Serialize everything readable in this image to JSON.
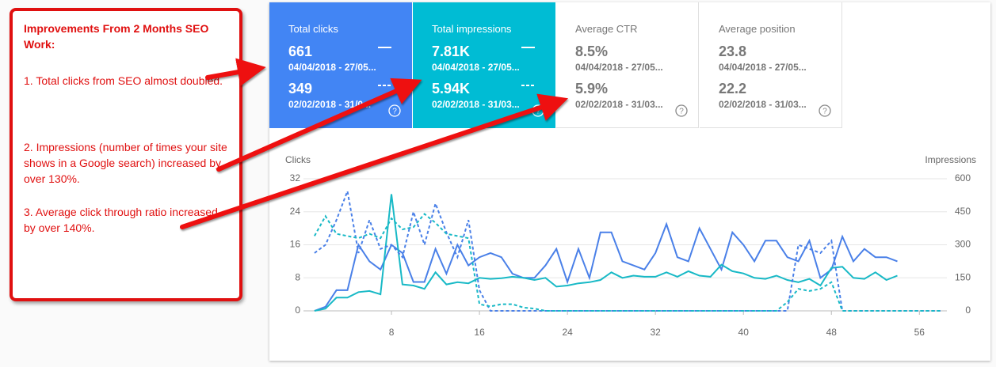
{
  "annotation": {
    "title": "Improvements From 2 Months SEO Work:",
    "items": [
      "1.  Total clicks from SEO almost doubled.",
      "2.  Impressions (number of times your site shows in a Google search) increased by over 130%.",
      "3.  Average click through ratio increased by over 140%."
    ]
  },
  "cards": [
    {
      "label": "Total clicks",
      "current": {
        "value": "661",
        "range": "04/04/2018 - 27/05..."
      },
      "previous": {
        "value": "349",
        "range": "02/02/2018 - 31/0..."
      },
      "color": "#4285f4"
    },
    {
      "label": "Total impressions",
      "current": {
        "value": "7.81K",
        "range": "04/04/2018 - 27/05..."
      },
      "previous": {
        "value": "5.94K",
        "range": "02/02/2018 - 31/03..."
      },
      "color": "#00bcd4"
    },
    {
      "label": "Average CTR",
      "current": {
        "value": "8.5%",
        "range": "04/04/2018 - 27/05..."
      },
      "previous": {
        "value": "5.9%",
        "range": "02/02/2018 - 31/03..."
      },
      "color": "#ffffff"
    },
    {
      "label": "Average position",
      "current": {
        "value": "23.8",
        "range": "04/04/2018 - 27/05..."
      },
      "previous": {
        "value": "22.2",
        "range": "02/02/2018 - 31/03..."
      },
      "color": "#ffffff"
    }
  ],
  "chart_data": {
    "type": "line",
    "y_label": "Clicks",
    "y2_label": "Impressions",
    "x": [
      1,
      2,
      3,
      4,
      5,
      6,
      7,
      8,
      9,
      10,
      11,
      12,
      13,
      14,
      15,
      16,
      17,
      18,
      19,
      20,
      21,
      22,
      23,
      24,
      25,
      26,
      27,
      28,
      29,
      30,
      31,
      32,
      33,
      34,
      35,
      36,
      37,
      38,
      39,
      40,
      41,
      42,
      43,
      44,
      45,
      46,
      47,
      48,
      49,
      50,
      51,
      52,
      53,
      54,
      55,
      56,
      57,
      58
    ],
    "xlim": [
      0,
      58.5
    ],
    "xticks": [
      8,
      16,
      24,
      32,
      40,
      48,
      56
    ],
    "ylim": [
      0,
      32
    ],
    "yticks": [
      0,
      8,
      16,
      24,
      32
    ],
    "y2lim": [
      0,
      600
    ],
    "y2ticks": [
      0,
      150,
      300,
      450,
      600
    ],
    "grid": true,
    "series": [
      {
        "color": "#4a80e8",
        "style": "solid",
        "axis": "y",
        "values": [
          0,
          1,
          5,
          5,
          16,
          12,
          10,
          16,
          14,
          7,
          7,
          15,
          9,
          16,
          11,
          13,
          14,
          13,
          9,
          8,
          8,
          11,
          15,
          7,
          15,
          8,
          19,
          19,
          12,
          11,
          10,
          14,
          21,
          13,
          12,
          20,
          15,
          10,
          19,
          16,
          12,
          17,
          17,
          13,
          12,
          17,
          8,
          10,
          18,
          12,
          15,
          13,
          13,
          12,
          null,
          null,
          null,
          null
        ]
      },
      {
        "color": "#18b9c6",
        "style": "solid",
        "axis": "y2",
        "values": [
          0,
          10,
          60,
          60,
          85,
          90,
          75,
          530,
          120,
          115,
          100,
          175,
          120,
          130,
          125,
          150,
          145,
          148,
          155,
          150,
          140,
          150,
          110,
          115,
          125,
          130,
          140,
          175,
          150,
          160,
          155,
          155,
          175,
          155,
          180,
          160,
          155,
          210,
          180,
          170,
          150,
          145,
          160,
          140,
          130,
          145,
          115,
          195,
          200,
          150,
          145,
          175,
          140,
          160,
          null,
          null,
          null,
          null
        ]
      },
      {
        "color": "#4a80e8",
        "style": "dashed",
        "axis": "y",
        "values": [
          14,
          16,
          22,
          29,
          14,
          22,
          15,
          16,
          13,
          24,
          16,
          26,
          19,
          13,
          22,
          5,
          0,
          0,
          0,
          0,
          0,
          0,
          0,
          0,
          0,
          0,
          0,
          0,
          0,
          0,
          0,
          0,
          0,
          0,
          0,
          0,
          0,
          0,
          0,
          0,
          0,
          0,
          0,
          0,
          16,
          15,
          14,
          17,
          0,
          0,
          0,
          0,
          0,
          0,
          0,
          0,
          0,
          0
        ]
      },
      {
        "color": "#18b9c6",
        "style": "dashed",
        "axis": "y2",
        "values": [
          340,
          430,
          350,
          340,
          330,
          350,
          330,
          420,
          370,
          380,
          440,
          400,
          350,
          340,
          330,
          30,
          20,
          30,
          30,
          15,
          10,
          0,
          0,
          0,
          0,
          0,
          0,
          0,
          0,
          0,
          0,
          0,
          0,
          0,
          0,
          0,
          0,
          0,
          0,
          0,
          0,
          0,
          0,
          40,
          100,
          90,
          100,
          130,
          0,
          0,
          0,
          0,
          0,
          0,
          0,
          0,
          0,
          0
        ]
      }
    ]
  }
}
